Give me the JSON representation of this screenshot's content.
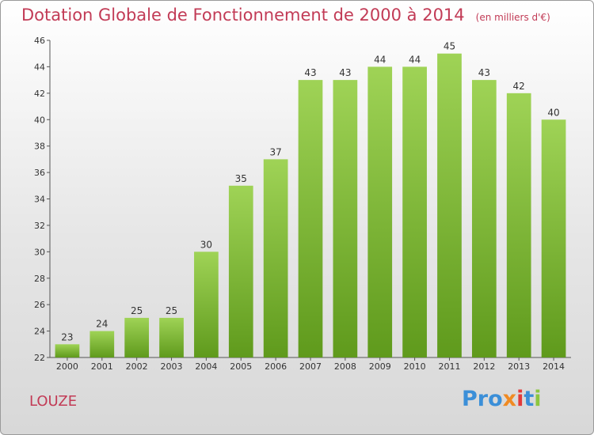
{
  "chart_data": {
    "type": "bar",
    "title": "Dotation Globale de Fonctionnement de 2000 à 2014",
    "subtitle": "(en milliers d'€)",
    "categories": [
      "2000",
      "2001",
      "2002",
      "2003",
      "2004",
      "2005",
      "2006",
      "2007",
      "2008",
      "2009",
      "2010",
      "2011",
      "2012",
      "2013",
      "2014"
    ],
    "values": [
      23,
      24,
      25,
      25,
      30,
      35,
      37,
      43,
      43,
      44,
      44,
      45,
      43,
      42,
      40
    ],
    "ylim": [
      22,
      46
    ],
    "yticks": [
      22,
      24,
      26,
      28,
      30,
      32,
      34,
      36,
      38,
      40,
      42,
      44,
      46
    ],
    "grid": false,
    "data_labels": true,
    "bar_color": "#7ab831",
    "bar_color_light": "#9fd356",
    "bar_color_dark": "#5f9a1c"
  },
  "commune": "LOUZE",
  "logo": {
    "p1": "Pro",
    "p2": "x",
    "p3": "i",
    "p4": "t",
    "p5": "i"
  },
  "colors": {
    "title": "#c23b56",
    "axis": "#555555"
  }
}
